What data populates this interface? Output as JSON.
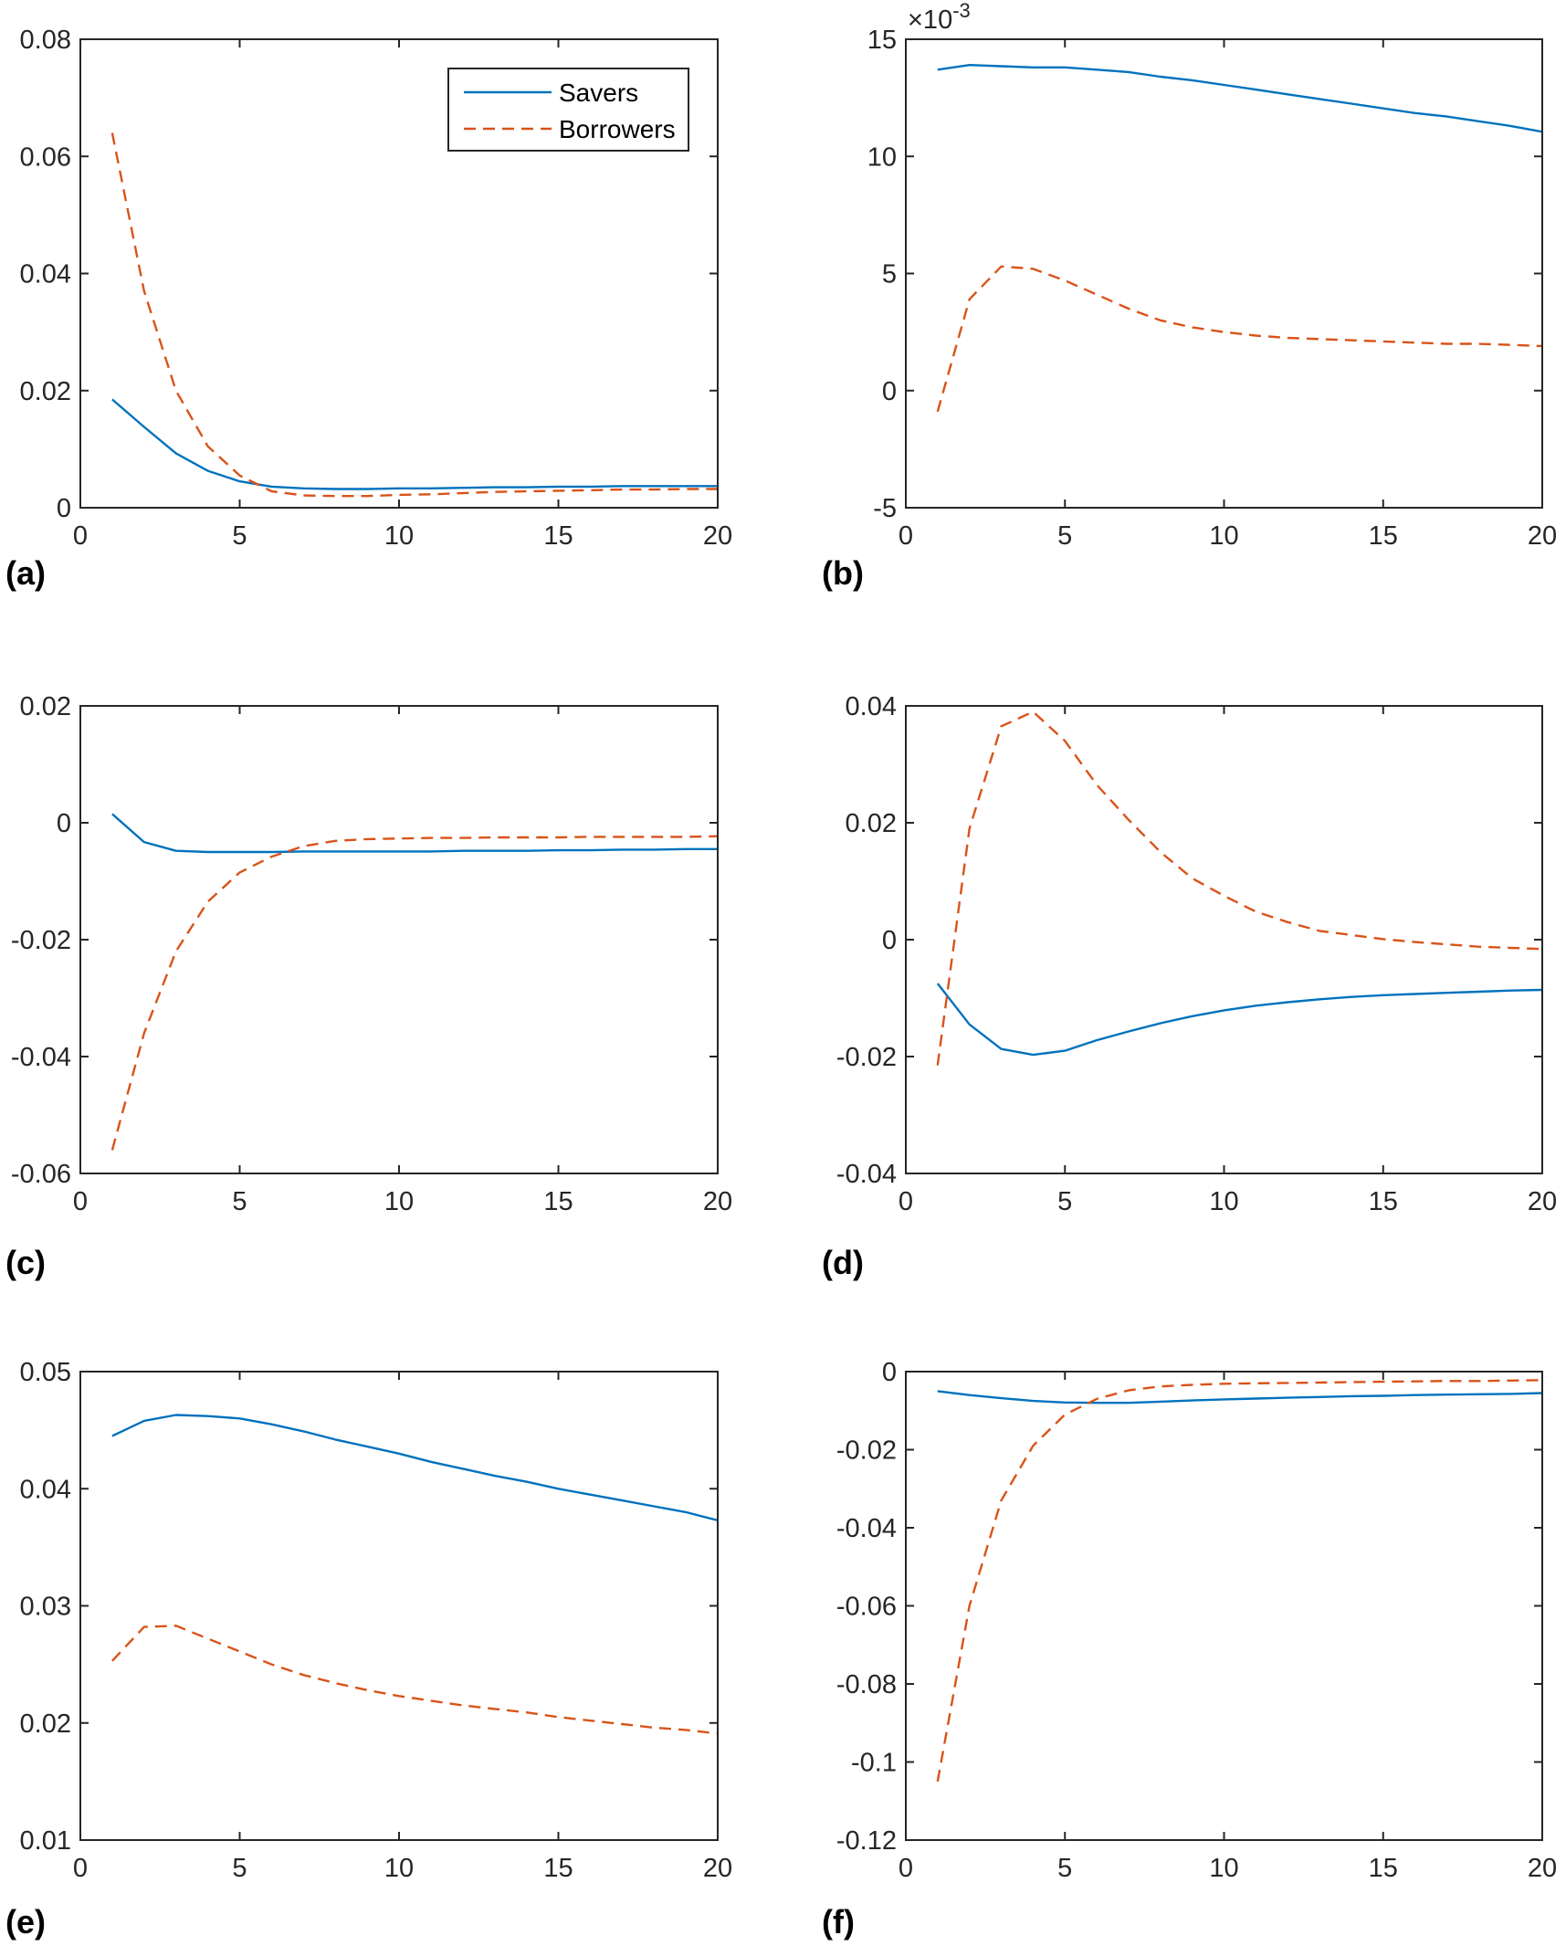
{
  "legend": {
    "savers": "Savers",
    "borrowers": "Borrowers"
  },
  "colors": {
    "savers": "#0072BD",
    "borrowers": "#D95319",
    "axis": "#262626"
  },
  "chart_data": [
    {
      "panel": "(a)",
      "type": "line",
      "xlim": [
        0,
        20
      ],
      "ylim": [
        0,
        0.08
      ],
      "xticks": [
        "0",
        "5",
        "10",
        "15",
        "20"
      ],
      "yticks": [
        "0",
        "0.02",
        "0.04",
        "0.06",
        "0.08"
      ],
      "ytick_values": [
        0,
        0.02,
        0.04,
        0.06,
        0.08
      ],
      "exponent": "",
      "legend": "top-right",
      "x": [
        1,
        2,
        3,
        4,
        5,
        6,
        7,
        8,
        9,
        10,
        11,
        12,
        13,
        14,
        15,
        16,
        17,
        18,
        19,
        20
      ],
      "series": [
        {
          "name": "Savers",
          "values": [
            0.0185,
            0.0138,
            0.0093,
            0.0063,
            0.0045,
            0.0036,
            0.0033,
            0.0032,
            0.0032,
            0.0033,
            0.0033,
            0.0034,
            0.0035,
            0.0035,
            0.0036,
            0.0036,
            0.0037,
            0.0037,
            0.0037,
            0.0037
          ]
        },
        {
          "name": "Borrowers",
          "values": [
            0.064,
            0.037,
            0.02,
            0.0105,
            0.0055,
            0.0028,
            0.0021,
            0.002,
            0.002,
            0.0022,
            0.0023,
            0.0025,
            0.0027,
            0.0028,
            0.0029,
            0.003,
            0.0031,
            0.0031,
            0.0032,
            0.0032
          ]
        }
      ]
    },
    {
      "panel": "(b)",
      "type": "line",
      "xlim": [
        0,
        20
      ],
      "ylim": [
        -5,
        15
      ],
      "xticks": [
        "0",
        "5",
        "10",
        "15",
        "20"
      ],
      "yticks": [
        "-5",
        "0",
        "5",
        "10",
        "15"
      ],
      "ytick_values": [
        -5,
        0,
        5,
        10,
        15
      ],
      "exponent": "×10",
      "exponent_power": "-3",
      "x": [
        1,
        2,
        3,
        4,
        5,
        6,
        7,
        8,
        9,
        10,
        11,
        12,
        13,
        14,
        15,
        16,
        17,
        18,
        19,
        20
      ],
      "series": [
        {
          "name": "Savers",
          "values": [
            13.7,
            13.9,
            13.85,
            13.8,
            13.8,
            13.7,
            13.6,
            13.4,
            13.25,
            13.05,
            12.85,
            12.65,
            12.45,
            12.25,
            12.05,
            11.85,
            11.7,
            11.5,
            11.3,
            11.05
          ]
        },
        {
          "name": "Borrowers",
          "values": [
            -0.9,
            3.9,
            5.3,
            5.2,
            4.7,
            4.1,
            3.5,
            3.0,
            2.7,
            2.5,
            2.35,
            2.25,
            2.2,
            2.15,
            2.1,
            2.05,
            2.0,
            2.0,
            1.95,
            1.9
          ]
        }
      ]
    },
    {
      "panel": "(c)",
      "type": "line",
      "xlim": [
        0,
        20
      ],
      "ylim": [
        -0.06,
        0.02
      ],
      "xticks": [
        "0",
        "5",
        "10",
        "15",
        "20"
      ],
      "yticks": [
        "-0.06",
        "-0.04",
        "-0.02",
        "0",
        "0.02"
      ],
      "ytick_values": [
        -0.06,
        -0.04,
        -0.02,
        0,
        0.02
      ],
      "exponent": "",
      "x": [
        1,
        2,
        3,
        4,
        5,
        6,
        7,
        8,
        9,
        10,
        11,
        12,
        13,
        14,
        15,
        16,
        17,
        18,
        19,
        20
      ],
      "series": [
        {
          "name": "Savers",
          "values": [
            0.0015,
            -0.0033,
            -0.0048,
            -0.005,
            -0.005,
            -0.005,
            -0.0049,
            -0.0049,
            -0.0049,
            -0.0049,
            -0.0049,
            -0.0048,
            -0.0048,
            -0.0048,
            -0.0047,
            -0.0047,
            -0.0046,
            -0.0046,
            -0.0045,
            -0.0045
          ]
        },
        {
          "name": "Borrowers",
          "values": [
            -0.056,
            -0.036,
            -0.022,
            -0.0135,
            -0.0085,
            -0.0058,
            -0.004,
            -0.0031,
            -0.0028,
            -0.0027,
            -0.0026,
            -0.0026,
            -0.0025,
            -0.0025,
            -0.0025,
            -0.0024,
            -0.0024,
            -0.0024,
            -0.0024,
            -0.0023
          ]
        }
      ]
    },
    {
      "panel": "(d)",
      "type": "line",
      "xlim": [
        0,
        20
      ],
      "ylim": [
        -0.04,
        0.04
      ],
      "xticks": [
        "0",
        "5",
        "10",
        "15",
        "20"
      ],
      "yticks": [
        "-0.04",
        "-0.02",
        "0",
        "0.02",
        "0.04"
      ],
      "ytick_values": [
        -0.04,
        -0.02,
        0,
        0.02,
        0.04
      ],
      "exponent": "",
      "x": [
        1,
        2,
        3,
        4,
        5,
        6,
        7,
        8,
        9,
        10,
        11,
        12,
        13,
        14,
        15,
        16,
        17,
        18,
        19,
        20
      ],
      "series": [
        {
          "name": "Savers",
          "values": [
            -0.0075,
            -0.0145,
            -0.0187,
            -0.0197,
            -0.019,
            -0.0172,
            -0.0157,
            -0.0143,
            -0.0131,
            -0.0121,
            -0.0113,
            -0.0107,
            -0.0102,
            -0.0098,
            -0.0095,
            -0.0093,
            -0.0091,
            -0.0089,
            -0.0087,
            -0.0086
          ]
        },
        {
          "name": "Borrowers",
          "values": [
            -0.0215,
            0.019,
            0.0365,
            0.039,
            0.034,
            0.0265,
            0.0205,
            0.015,
            0.0105,
            0.0075,
            0.0048,
            0.003,
            0.0015,
            0.0008,
            0.0001,
            -0.0004,
            -0.0008,
            -0.0012,
            -0.0014,
            -0.0016
          ]
        }
      ]
    },
    {
      "panel": "(e)",
      "type": "line",
      "xlim": [
        0,
        20
      ],
      "ylim": [
        0.01,
        0.05
      ],
      "xticks": [
        "0",
        "5",
        "10",
        "15",
        "20"
      ],
      "yticks": [
        "0.01",
        "0.02",
        "0.03",
        "0.04",
        "0.05"
      ],
      "ytick_values": [
        0.01,
        0.02,
        0.03,
        0.04,
        0.05
      ],
      "exponent": "",
      "x": [
        1,
        2,
        3,
        4,
        5,
        6,
        7,
        8,
        9,
        10,
        11,
        12,
        13,
        14,
        15,
        16,
        17,
        18,
        19,
        20
      ],
      "series": [
        {
          "name": "Savers",
          "values": [
            0.0445,
            0.0458,
            0.0463,
            0.0462,
            0.046,
            0.0455,
            0.0449,
            0.0442,
            0.0436,
            0.043,
            0.0423,
            0.0417,
            0.0411,
            0.0406,
            0.04,
            0.0395,
            0.039,
            0.0385,
            0.038,
            0.0373
          ]
        },
        {
          "name": "Borrowers",
          "values": [
            0.0253,
            0.0282,
            0.0283,
            0.0272,
            0.0261,
            0.025,
            0.0241,
            0.0234,
            0.0228,
            0.0223,
            0.0219,
            0.0215,
            0.0212,
            0.0209,
            0.0205,
            0.0202,
            0.0199,
            0.0196,
            0.0194,
            0.0191
          ]
        }
      ]
    },
    {
      "panel": "(f)",
      "type": "line",
      "xlim": [
        0,
        20
      ],
      "ylim": [
        -0.12,
        0
      ],
      "xticks": [
        "0",
        "5",
        "10",
        "15",
        "20"
      ],
      "yticks": [
        "-0.12",
        "-0.1",
        "-0.08",
        "-0.06",
        "-0.04",
        "-0.02",
        "0"
      ],
      "ytick_values": [
        -0.12,
        -0.1,
        -0.08,
        -0.06,
        -0.04,
        -0.02,
        0
      ],
      "exponent": "",
      "x": [
        1,
        2,
        3,
        4,
        5,
        6,
        7,
        8,
        9,
        10,
        11,
        12,
        13,
        14,
        15,
        16,
        17,
        18,
        19,
        20
      ],
      "series": [
        {
          "name": "Savers",
          "values": [
            -0.005,
            -0.006,
            -0.0068,
            -0.0075,
            -0.0079,
            -0.008,
            -0.008,
            -0.0077,
            -0.0074,
            -0.0071,
            -0.0069,
            -0.0067,
            -0.0065,
            -0.0063,
            -0.0062,
            -0.006,
            -0.0059,
            -0.0058,
            -0.0057,
            -0.0055
          ]
        },
        {
          "name": "Borrowers",
          "values": [
            -0.105,
            -0.06,
            -0.033,
            -0.019,
            -0.011,
            -0.007,
            -0.0048,
            -0.0038,
            -0.0034,
            -0.0031,
            -0.003,
            -0.0029,
            -0.0028,
            -0.0027,
            -0.0026,
            -0.0025,
            -0.0024,
            -0.0024,
            -0.0023,
            -0.0022
          ]
        }
      ]
    }
  ]
}
